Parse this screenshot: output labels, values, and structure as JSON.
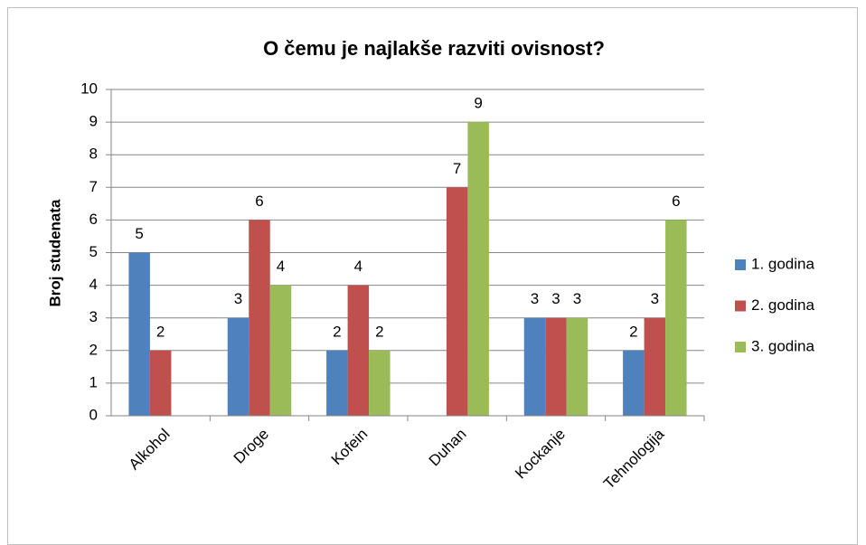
{
  "chart_data": {
    "type": "bar",
    "title": "O čemu je najlakše razviti ovisnost?",
    "y_label": "Broj studenata",
    "categories": [
      "Alkohol",
      "Droge",
      "Kofein",
      "Duhan",
      "Kockanje",
      "Tehnologija"
    ],
    "series": [
      {
        "name": "1. godina",
        "color": "#4f81bd",
        "values": [
          5,
          3,
          2,
          null,
          3,
          2
        ]
      },
      {
        "name": "2. godina",
        "color": "#c0504d",
        "values": [
          2,
          6,
          4,
          7,
          3,
          3
        ]
      },
      {
        "name": "3. godina",
        "color": "#9bbb59",
        "values": [
          null,
          4,
          2,
          9,
          3,
          6
        ]
      }
    ],
    "ylim": [
      0,
      10
    ],
    "yticks": [
      0,
      1,
      2,
      3,
      4,
      5,
      6,
      7,
      8,
      9,
      10
    ],
    "grid": true,
    "legend": "right"
  }
}
